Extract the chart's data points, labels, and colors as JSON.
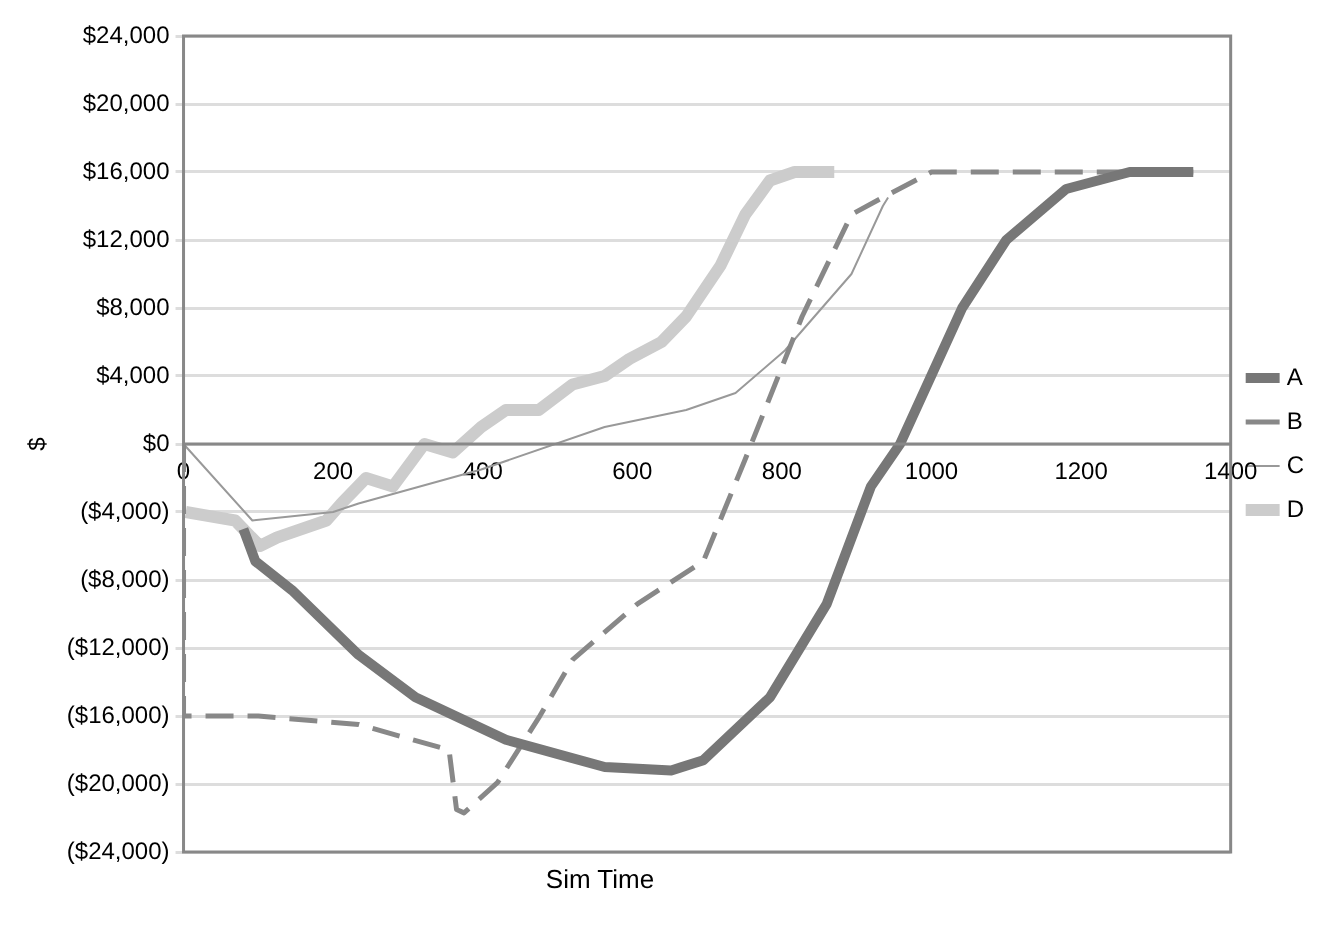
{
  "chart_data": {
    "type": "line",
    "xlabel": "Sim Time",
    "ylabel": "$",
    "xlim": [
      0,
      1400
    ],
    "xticks": [
      0,
      200,
      400,
      600,
      800,
      1000,
      1200,
      1400
    ],
    "ylim": [
      -24000,
      24000
    ],
    "yticks": [
      {
        "value": -24000,
        "label": "($24,000)"
      },
      {
        "value": -20000,
        "label": "($20,000)"
      },
      {
        "value": -16000,
        "label": "($16,000)"
      },
      {
        "value": -12000,
        "label": "($12,000)"
      },
      {
        "value": -8000,
        "label": "($8,000)"
      },
      {
        "value": -4000,
        "label": "($4,000)"
      },
      {
        "value": 0,
        "label": "$0"
      },
      {
        "value": 4000,
        "label": "$4,000"
      },
      {
        "value": 8000,
        "label": "$8,000"
      },
      {
        "value": 12000,
        "label": "$12,000"
      },
      {
        "value": 16000,
        "label": "$16,000"
      },
      {
        "value": 20000,
        "label": "$20,000"
      },
      {
        "value": 24000,
        "label": "$24,000"
      }
    ],
    "grid": "y",
    "legend": "right",
    "marker": "none",
    "series": [
      {
        "name": "A",
        "color": "#777777",
        "line_style": "solid",
        "x": [
          80,
          96,
          145,
          234,
          310,
          431,
          563,
          652,
          695,
          784,
          860,
          919,
          958,
          1041,
          1100,
          1180,
          1265,
          1350
        ],
        "values": [
          -5000,
          -6900,
          -8600,
          -12400,
          -14900,
          -17400,
          -19000,
          -19200,
          -18600,
          -14900,
          -9400,
          -2500,
          0,
          8000,
          12000,
          15000,
          16000,
          16000
        ]
      },
      {
        "name": "B",
        "color": "#888888",
        "line_style": "dashed",
        "x": [
          0,
          0,
          100,
          234,
          355,
          365,
          375,
          420,
          475,
          520,
          607,
          695,
          750,
          827,
          893,
          935,
          1000,
          1350
        ],
        "values": [
          0,
          -16000,
          -16000,
          -16500,
          -18000,
          -21500,
          -21700,
          -19900,
          -16100,
          -12700,
          -9400,
          -6900,
          -1000,
          7500,
          13500,
          14500,
          16000,
          16000
        ]
      },
      {
        "name": "C",
        "color": "#999999",
        "line_style": "solid",
        "x": [
          0,
          92,
          200,
          234,
          398,
          563,
          672,
          738,
          804,
          893,
          935,
          942
        ],
        "values": [
          0,
          -4500,
          -4000,
          -3500,
          -1500,
          1000,
          2000,
          3000,
          5500,
          10000,
          14000,
          14500
        ]
      },
      {
        "name": "D",
        "color": "#cccccc",
        "line_style": "solid",
        "x": [
          3,
          69,
          102,
          125,
          158,
          191,
          211,
          244,
          280,
          322,
          360,
          398,
          431,
          475,
          520,
          563,
          596,
          639,
          672,
          718,
          751,
          784,
          817,
          870
        ],
        "values": [
          -4000,
          -4500,
          -6000,
          -5500,
          -5000,
          -4500,
          -3500,
          -2000,
          -2500,
          0,
          -500,
          1000,
          2000,
          2000,
          3500,
          4000,
          5000,
          6000,
          7500,
          10500,
          13500,
          15500,
          16000,
          16000
        ]
      }
    ]
  }
}
